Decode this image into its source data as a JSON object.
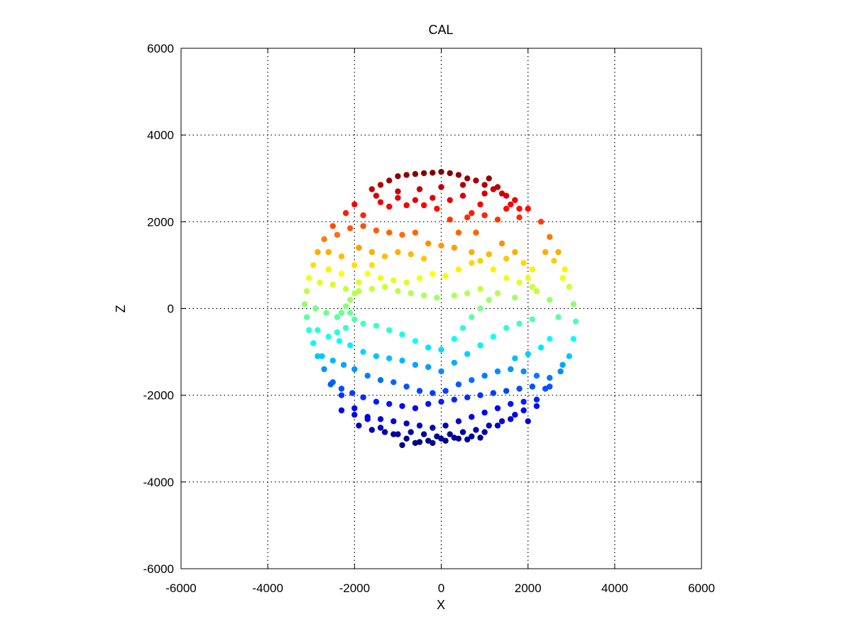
{
  "chart_data": {
    "type": "scatter",
    "title": "CAL",
    "xlabel": "X",
    "ylabel": "Z",
    "xlim": [
      -6000,
      6000
    ],
    "ylim": [
      -6000,
      6000
    ],
    "xticks": [
      -6000,
      -4000,
      -2000,
      0,
      2000,
      4000,
      6000
    ],
    "yticks": [
      -6000,
      -4000,
      -2000,
      0,
      2000,
      4000,
      6000
    ],
    "xtick_labels": [
      "-6000",
      "-4000",
      "-2000",
      "0",
      "2000",
      "4000",
      "6000"
    ],
    "ytick_labels": [
      "-6000",
      "-4000",
      "-2000",
      "0",
      "2000",
      "4000",
      "6000"
    ],
    "grid": true,
    "grid_style": "dotted",
    "colormap": "jet",
    "color_by": "Z",
    "color_range": [
      -3100,
      3150
    ],
    "series": [
      {
        "points": [
          [
            -1000,
            3050
          ],
          [
            -800,
            3080
          ],
          [
            -600,
            3100
          ],
          [
            -400,
            3120
          ],
          [
            -200,
            3130
          ],
          [
            0,
            3150
          ],
          [
            200,
            3120
          ],
          [
            400,
            3080
          ],
          [
            600,
            3000
          ],
          [
            800,
            2950
          ],
          [
            1000,
            2850
          ],
          [
            1200,
            2750
          ],
          [
            1400,
            2650
          ],
          [
            -1600,
            2750
          ],
          [
            -1400,
            2850
          ],
          [
            -1200,
            2950
          ],
          [
            -2000,
            2400
          ],
          [
            -2200,
            2200
          ],
          [
            -2500,
            1900
          ],
          [
            -2700,
            1600
          ],
          [
            -2850,
            1300
          ],
          [
            -2950,
            1000
          ],
          [
            -3050,
            700
          ],
          [
            -3100,
            400
          ],
          [
            -3150,
            100
          ],
          [
            -3100,
            -200
          ],
          [
            -3050,
            -500
          ],
          [
            -2950,
            -800
          ],
          [
            -2850,
            -1100
          ],
          [
            -2700,
            -1400
          ],
          [
            -2500,
            -1700
          ],
          [
            -2300,
            -2000
          ],
          [
            -2000,
            -2300
          ],
          [
            -1700,
            -2550
          ],
          [
            -1400,
            -2750
          ],
          [
            -1100,
            -2900
          ],
          [
            -800,
            -3000
          ],
          [
            -500,
            -3080
          ],
          [
            -200,
            -3100
          ],
          [
            100,
            -3050
          ],
          [
            400,
            -3000
          ],
          [
            700,
            -2950
          ],
          [
            1000,
            -2850
          ],
          [
            1300,
            -2700
          ],
          [
            1600,
            -2550
          ],
          [
            1900,
            -2350
          ],
          [
            2200,
            -2100
          ],
          [
            2500,
            -1800
          ],
          [
            2750,
            -1450
          ],
          [
            2950,
            -1100
          ],
          [
            3050,
            -700
          ],
          [
            3100,
            -300
          ],
          [
            3050,
            100
          ],
          [
            2950,
            500
          ],
          [
            2850,
            900
          ],
          [
            2700,
            1300
          ],
          [
            2500,
            1650
          ],
          [
            2300,
            2000
          ],
          [
            2000,
            2300
          ],
          [
            1700,
            2500
          ],
          [
            -1500,
            2600
          ],
          [
            -1000,
            2700
          ],
          [
            -500,
            2750
          ],
          [
            0,
            2800
          ],
          [
            500,
            2850
          ],
          [
            1000,
            2650
          ],
          [
            1500,
            2300
          ],
          [
            1800,
            2100
          ],
          [
            -1200,
            2350
          ],
          [
            -800,
            2380
          ],
          [
            -400,
            2380
          ],
          [
            -100,
            2300
          ],
          [
            200,
            2050
          ],
          [
            600,
            2100
          ],
          [
            1000,
            2150
          ],
          [
            1300,
            2050
          ],
          [
            -2400,
            1700
          ],
          [
            -2100,
            1850
          ],
          [
            -1800,
            1900
          ],
          [
            -1500,
            1800
          ],
          [
            -1200,
            1750
          ],
          [
            -900,
            1700
          ],
          [
            -600,
            1750
          ],
          [
            -300,
            1500
          ],
          [
            0,
            1450
          ],
          [
            300,
            1400
          ],
          [
            700,
            1300
          ],
          [
            1100,
            1250
          ],
          [
            1500,
            1150
          ],
          [
            1900,
            1050
          ],
          [
            2100,
            900
          ],
          [
            2000,
            700
          ],
          [
            -2600,
            1300
          ],
          [
            -2300,
            1200
          ],
          [
            -2000,
            1000
          ],
          [
            -1700,
            800
          ],
          [
            -1400,
            700
          ],
          [
            -1100,
            650
          ],
          [
            -800,
            600
          ],
          [
            -500,
            700
          ],
          [
            -200,
            800
          ],
          [
            100,
            750
          ],
          [
            400,
            900
          ],
          [
            700,
            1050
          ],
          [
            900,
            1100
          ],
          [
            1200,
            900
          ],
          [
            1500,
            700
          ],
          [
            1800,
            600
          ],
          [
            2100,
            500
          ],
          [
            -2800,
            600
          ],
          [
            -2500,
            550
          ],
          [
            -2200,
            450
          ],
          [
            -1900,
            400
          ],
          [
            -1600,
            450
          ],
          [
            -1300,
            500
          ],
          [
            -1000,
            400
          ],
          [
            -700,
            350
          ],
          [
            -400,
            300
          ],
          [
            -100,
            250
          ],
          [
            300,
            300
          ],
          [
            600,
            350
          ],
          [
            900,
            450
          ],
          [
            1300,
            350
          ],
          [
            1700,
            250
          ],
          [
            2200,
            400
          ],
          [
            2500,
            200
          ],
          [
            -2900,
            0
          ],
          [
            -2650,
            -100
          ],
          [
            -2400,
            -200
          ],
          [
            -2100,
            -100
          ],
          [
            -1800,
            -350
          ],
          [
            -1500,
            -400
          ],
          [
            -1200,
            -500
          ],
          [
            -900,
            -600
          ],
          [
            -600,
            -750
          ],
          [
            -300,
            -900
          ],
          [
            0,
            -950
          ],
          [
            300,
            -700
          ],
          [
            500,
            -450
          ],
          [
            700,
            -200
          ],
          [
            900,
            0
          ],
          [
            1100,
            200
          ],
          [
            2700,
            -200
          ],
          [
            -2850,
            -500
          ],
          [
            -2600,
            -650
          ],
          [
            -2350,
            -750
          ],
          [
            -2100,
            -850
          ],
          [
            -1800,
            -1000
          ],
          [
            -1500,
            -1100
          ],
          [
            -1200,
            -1150
          ],
          [
            -900,
            -1200
          ],
          [
            -600,
            -1300
          ],
          [
            -300,
            -1350
          ],
          [
            0,
            -1450
          ],
          [
            300,
            -1250
          ],
          [
            600,
            -1050
          ],
          [
            900,
            -850
          ],
          [
            1200,
            -650
          ],
          [
            1500,
            -450
          ],
          [
            1800,
            -350
          ],
          [
            2100,
            -250
          ],
          [
            -2750,
            -1100
          ],
          [
            -2500,
            -1200
          ],
          [
            -2250,
            -1300
          ],
          [
            -2000,
            -1400
          ],
          [
            -1700,
            -1550
          ],
          [
            -1400,
            -1650
          ],
          [
            -1100,
            -1700
          ],
          [
            -800,
            -1800
          ],
          [
            -500,
            -1900
          ],
          [
            -200,
            -1950
          ],
          [
            100,
            -1900
          ],
          [
            400,
            -1750
          ],
          [
            700,
            -1650
          ],
          [
            1000,
            -1550
          ],
          [
            1300,
            -1450
          ],
          [
            1600,
            -1400
          ],
          [
            1900,
            -1450
          ],
          [
            2200,
            -1550
          ],
          [
            2500,
            -1600
          ],
          [
            2800,
            -1300
          ],
          [
            -2550,
            -1750
          ],
          [
            -2300,
            -1850
          ],
          [
            -2050,
            -1950
          ],
          [
            -1800,
            -2050
          ],
          [
            -1500,
            -2150
          ],
          [
            -1200,
            -2200
          ],
          [
            -900,
            -2250
          ],
          [
            -600,
            -2300
          ],
          [
            -300,
            -2200
          ],
          [
            0,
            -2150
          ],
          [
            300,
            -2100
          ],
          [
            600,
            -2050
          ],
          [
            900,
            -2000
          ],
          [
            1200,
            -1950
          ],
          [
            1500,
            -1900
          ],
          [
            1800,
            -1850
          ],
          [
            2100,
            -1800
          ],
          [
            2400,
            -1850
          ],
          [
            -2300,
            -2350
          ],
          [
            -2000,
            -2450
          ],
          [
            -1700,
            -2500
          ],
          [
            -1400,
            -2550
          ],
          [
            -1100,
            -2600
          ],
          [
            -800,
            -2650
          ],
          [
            -500,
            -2700
          ],
          [
            -200,
            -2750
          ],
          [
            100,
            -2700
          ],
          [
            400,
            -2600
          ],
          [
            700,
            -2500
          ],
          [
            1000,
            -2400
          ],
          [
            1300,
            -2300
          ],
          [
            1600,
            -2200
          ],
          [
            1900,
            -2150
          ],
          [
            2200,
            -2250
          ],
          [
            -1900,
            -2700
          ],
          [
            -1600,
            -2800
          ],
          [
            -1300,
            -2850
          ],
          [
            -1000,
            -2900
          ],
          [
            -700,
            -2850
          ],
          [
            -400,
            -2900
          ],
          [
            -100,
            -2950
          ],
          [
            200,
            -2900
          ],
          [
            500,
            -2850
          ],
          [
            800,
            -2800
          ],
          [
            1100,
            -2700
          ],
          [
            1400,
            -2600
          ],
          [
            1700,
            -2450
          ],
          [
            2000,
            -2600
          ],
          [
            -900,
            -3150
          ],
          [
            -600,
            -3100
          ],
          [
            -300,
            -3050
          ],
          [
            0,
            -3000
          ],
          [
            300,
            -2980
          ],
          [
            600,
            -3020
          ],
          [
            900,
            -2980
          ],
          [
            1600,
            2400
          ],
          [
            1800,
            2300
          ],
          [
            1500,
            2600
          ],
          [
            1300,
            2800
          ],
          [
            1100,
            3000
          ],
          [
            900,
            2400
          ],
          [
            700,
            2200
          ],
          [
            -2000,
            350
          ],
          [
            -2100,
            200
          ],
          [
            -2200,
            50
          ],
          [
            -2300,
            -100
          ],
          [
            -2000,
            -250
          ],
          [
            -2200,
            -450
          ],
          [
            -2400,
            -550
          ],
          [
            -1900,
            1400
          ],
          [
            -1600,
            1300
          ],
          [
            -1300,
            1200
          ],
          [
            -2600,
            900
          ],
          [
            -2300,
            800
          ],
          [
            -1900,
            600
          ],
          [
            -1600,
            1000
          ],
          [
            2300,
            -900
          ],
          [
            2000,
            -1050
          ],
          [
            1700,
            -1150
          ],
          [
            2500,
            -700
          ],
          [
            2600,
            1100
          ],
          [
            2400,
            1300
          ],
          [
            2800,
            700
          ],
          [
            500,
            2600
          ],
          [
            200,
            2500
          ],
          [
            -200,
            2550
          ],
          [
            -600,
            2500
          ],
          [
            -1000,
            2550
          ],
          [
            -1400,
            2450
          ],
          [
            -1800,
            2150
          ],
          [
            -1000,
            1300
          ],
          [
            -700,
            1250
          ],
          [
            -400,
            1150
          ],
          [
            1400,
            1500
          ],
          [
            1700,
            1300
          ],
          [
            400,
            1750
          ],
          [
            800,
            1750
          ]
        ]
      }
    ]
  }
}
